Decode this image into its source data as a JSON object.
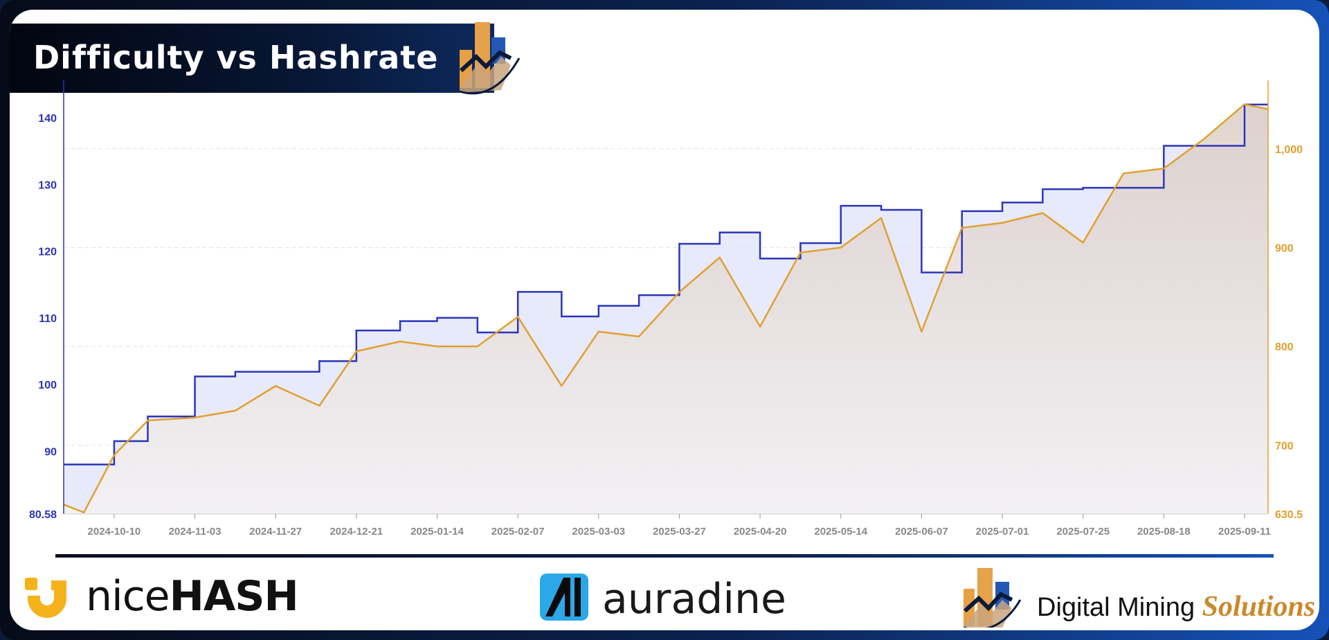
{
  "title": "Difficulty vs Hashrate",
  "colors": {
    "difficulty": "#2b35b8",
    "hashrate": "#e0a030",
    "difficulty_fill": "#dfe3f8",
    "hashrate_fill": "#d9cfc8",
    "grid": "#e2e2e2",
    "axis_text": "#888888"
  },
  "chart_data": {
    "type": "line",
    "x": [
      "2024-09-25",
      "2024-10-01",
      "2024-10-10",
      "2024-10-20",
      "2024-11-03",
      "2024-11-15",
      "2024-11-27",
      "2024-12-10",
      "2024-12-21",
      "2025-01-03",
      "2025-01-14",
      "2025-01-26",
      "2025-02-07",
      "2025-02-20",
      "2025-03-03",
      "2025-03-15",
      "2025-03-27",
      "2025-04-08",
      "2025-04-20",
      "2025-05-02",
      "2025-05-14",
      "2025-05-26",
      "2025-06-07",
      "2025-06-19",
      "2025-07-01",
      "2025-07-13",
      "2025-07-25",
      "2025-08-06",
      "2025-08-18",
      "2025-08-30",
      "2025-09-11",
      "2025-09-18"
    ],
    "x_ticks": [
      "2024-10-10",
      "2024-11-03",
      "2024-11-27",
      "2024-12-21",
      "2025-01-14",
      "2025-02-07",
      "2025-03-03",
      "2025-03-27",
      "2025-04-20",
      "2025-05-14",
      "2025-06-07",
      "2025-07-01",
      "2025-07-25",
      "2025-08-18",
      "2025-09-11"
    ],
    "series": [
      {
        "axis": "left",
        "values": [
          88.0,
          88.0,
          91.5,
          95.2,
          101.2,
          101.9,
          101.9,
          103.5,
          108.1,
          109.5,
          110.0,
          107.8,
          113.9,
          110.2,
          111.8,
          113.4,
          121.1,
          122.8,
          118.9,
          121.2,
          126.8,
          126.2,
          116.8,
          126.0,
          127.3,
          129.3,
          129.5,
          129.5,
          135.8,
          135.8,
          142.0,
          142.0
        ]
      },
      {
        "axis": "right",
        "values": [
          640,
          632,
          690,
          725,
          728,
          735,
          760,
          740,
          795,
          805,
          800,
          800,
          830,
          760,
          815,
          810,
          855,
          890,
          820,
          895,
          900,
          930,
          815,
          920,
          925,
          935,
          905,
          975,
          980,
          1010,
          1045,
          1040
        ]
      }
    ],
    "y_left": {
      "ticks": [
        140,
        130,
        120,
        110,
        100,
        90
      ],
      "min_label": "80.58",
      "range": [
        80.58,
        145
      ]
    },
    "y_right": {
      "ticks": [
        "1,000",
        "900",
        "800",
        "700"
      ],
      "tick_values": [
        1000,
        900,
        800,
        700
      ],
      "min_label": "630.5",
      "range": [
        630.5,
        1065
      ]
    },
    "grid": true
  },
  "footer": {
    "nicehash_light": "nice",
    "nicehash_bold": "HASH",
    "auradine": "auradine",
    "dms_plain": "Digital Mining",
    "dms_italic": "Solutions"
  }
}
